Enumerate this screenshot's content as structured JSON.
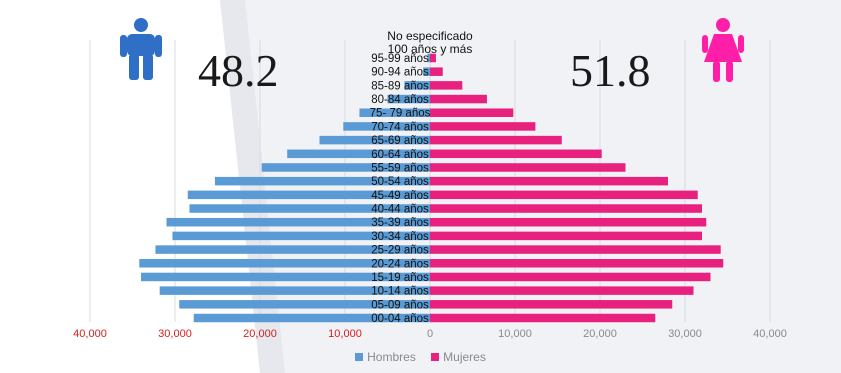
{
  "summary": {
    "men_percent": "48.2",
    "women_percent": "51.8"
  },
  "icons": {
    "men": "male-person-icon",
    "women": "female-person-icon"
  },
  "colors": {
    "men": "#5b9bd5",
    "women": "#e8217f",
    "axis_labels": "#d62020",
    "men_icon": "#2f6fc6",
    "women_icon": "#ff1ea8"
  },
  "chart_data": {
    "type": "bar",
    "orientation": "horizontal",
    "categories": [
      "00-04 años",
      "05-09 años",
      "10-14 años",
      "15-19 años",
      "20-24 años",
      "25-29 años",
      "30-34 años",
      "35-39 años",
      "40-44 años",
      "45-49 años",
      "50-54 años",
      "55-59 años",
      "60-64 años",
      "65-69 años",
      "70-74 años",
      "75- 79 años",
      "80-84 años",
      "85-89 años",
      "90-94 años",
      "95-99 años",
      "100 años y más",
      "No especificado"
    ],
    "series": [
      {
        "name": "Hombres",
        "values": [
          27800,
          29500,
          31800,
          34000,
          34200,
          32300,
          30300,
          31000,
          28300,
          28500,
          25300,
          19800,
          16800,
          13000,
          10200,
          8300,
          5000,
          3000,
          800,
          300,
          100,
          50
        ]
      },
      {
        "name": "Mujeres",
        "values": [
          26500,
          28500,
          31000,
          33000,
          34500,
          34200,
          32000,
          32500,
          32000,
          31500,
          28000,
          23000,
          20200,
          15500,
          12400,
          9800,
          6700,
          3800,
          1500,
          700,
          100,
          50
        ]
      }
    ],
    "xlim": [
      -40000,
      40000
    ],
    "xticks": [
      "40,000",
      "30,000",
      "20,000",
      "10,000",
      "0",
      "10,000",
      "20,000",
      "30,000",
      "40,000"
    ],
    "legend": [
      "Hombres",
      "Mujeres"
    ],
    "legend_position": "bottom"
  }
}
